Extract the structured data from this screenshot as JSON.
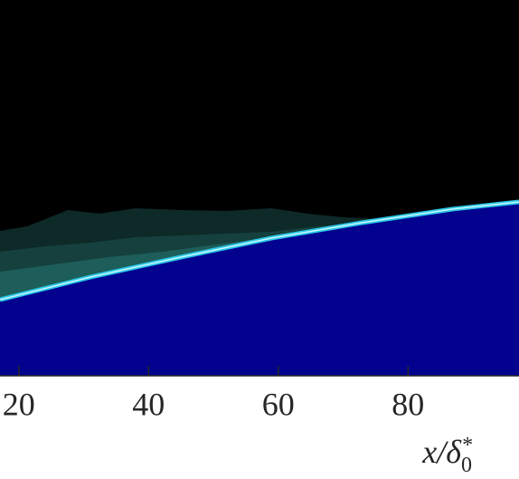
{
  "chart_data": {
    "type": "contour",
    "xlim": [
      17.1,
      97.1
    ],
    "xticks": [
      20,
      40,
      60,
      80
    ],
    "xlabel": {
      "base": "x/δ",
      "sup": "*",
      "sub": "0"
    }
  }
}
